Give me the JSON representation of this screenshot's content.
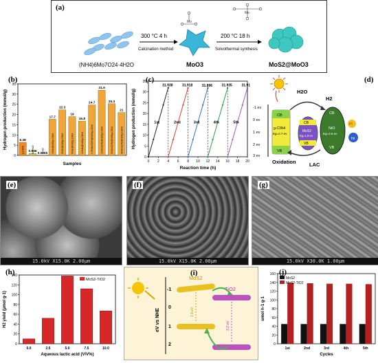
{
  "panel_a": {
    "label": "(a)",
    "precursor": "(NH4)6Mo7O24·4H2O",
    "step1_top": "300 °C  4 h",
    "step1_bottom": "Calcination method",
    "intermediate": "MoO3",
    "step2_top": "200 °C  18 h",
    "step2_bottom": "Solvothermal synthesis",
    "product": "MoS2@MoO3"
  },
  "panel_b": {
    "label": "(b)",
    "chart_data": {
      "type": "bar",
      "ylabel": "Hydrogen production (mmol/g)",
      "xlabel": "Samples",
      "categories": [
        "g-C3N4",
        "Ni@NiO",
        "MoS2",
        "1%Ni@NiO/g-C3N4",
        "3%Ni@NiO/g-C3N4",
        "5%Ni@NiO/g-C3N4",
        "10%Ni@NiO/g-C3N4",
        "0.5%MoS2/Ni@NiO/g-C3N4",
        "1%MoS2/Ni@NiO/g-C3N4",
        "2%MoS2/Ni@NiO/g-C3N4",
        "4%MoS2/Ni@NiO/g-C3N4"
      ],
      "values": [
        6.38,
        0.946,
        0.0065,
        17.7,
        22.3,
        19,
        16.8,
        24.7,
        31.9,
        25.3,
        21
      ],
      "value_labels": [
        "6.38",
        "0.946",
        "0.0065",
        "17.7",
        "22.3",
        "19",
        "16.8",
        "24.7",
        "31.9",
        "25.3",
        "21"
      ],
      "ylim": [
        0,
        35
      ],
      "yticks": [
        "0",
        "5",
        "10",
        "15",
        "20",
        "25",
        "30",
        "35"
      ]
    }
  },
  "panel_c": {
    "label": "(c)",
    "chart_data": {
      "type": "line",
      "ylabel": "Hydrogen production (mmol/g)",
      "xlabel": "Reaction time (h)",
      "xlim": [
        0,
        20
      ],
      "ylim": [
        0,
        35
      ],
      "xticks": [
        "0",
        "2",
        "4",
        "6",
        "8",
        "10",
        "12",
        "14",
        "16",
        "18",
        "20"
      ],
      "yticks": [
        "0",
        "5",
        "10",
        "15",
        "20",
        "25",
        "30",
        "35"
      ],
      "series": [
        {
          "name": "1st",
          "x": [
            0,
            1,
            2,
            3,
            4
          ],
          "y": [
            0,
            8,
            16,
            24,
            31.938
          ],
          "peak_label": "31.938",
          "color": "#222222"
        },
        {
          "name": "2nd",
          "x": [
            4,
            5,
            6,
            7,
            8
          ],
          "y": [
            0,
            8,
            16,
            24,
            31.918
          ],
          "peak_label": "31.918",
          "color": "#d9472b"
        },
        {
          "name": "3rd",
          "x": [
            8,
            9,
            10,
            11,
            12
          ],
          "y": [
            0,
            8,
            16,
            24,
            31.896
          ],
          "peak_label": "31.896",
          "color": "#2f6fd6"
        },
        {
          "name": "4th",
          "x": [
            12,
            13,
            14,
            15,
            16
          ],
          "y": [
            0,
            8,
            16,
            24,
            31.935
          ],
          "peak_label": "31.935",
          "color": "#2a9d4a"
        },
        {
          "name": "5th",
          "x": [
            16,
            17,
            18,
            19,
            20
          ],
          "y": [
            0,
            8,
            16,
            24,
            31.911
          ],
          "peak_label": "31.911",
          "color": "#9b59d0"
        }
      ]
    }
  },
  "panel_d": {
    "label": "(d)",
    "h2o": "H2O",
    "h2": "H2",
    "axis": [
      "-1 ev",
      "0 ev",
      "1 ev",
      "2 ev",
      "3 ev"
    ],
    "gcn": {
      "cb": "CB",
      "name": "g-C3N4",
      "eg": "Eg=2.7 ev",
      "vb": "VB"
    },
    "mos2": {
      "cb": "CB",
      "name": "MoS2",
      "eg": "Eg=1.9 ev",
      "vb": "VB"
    },
    "nio": {
      "cb": "CB",
      "name": "NiO",
      "eg": "Eg=3.5 ev",
      "vb": "VB"
    },
    "pt": "Pt",
    "ni": "Ni",
    "oxidation": "Oxidation",
    "lac": "LAC"
  },
  "panel_e": {
    "label": "(e)",
    "scale": "15.0kV X15.0K 2.00μm"
  },
  "panel_f": {
    "label": "(f)",
    "scale": "15.0kV X15.0K 2.00μm"
  },
  "panel_g": {
    "label": "(g)",
    "scale": "15.0kV X30.0K 1.00μm"
  },
  "panel_h": {
    "label": "(h)",
    "chart_data": {
      "type": "bar",
      "legend": "MoS2-TiO2",
      "ylabel": "H2 yield (μmol g-1)",
      "xlabel": "Aqueous lactic acid (V/V%)",
      "categories": [
        "0.0",
        "2.5",
        "5.0",
        "7.5",
        "10.0"
      ],
      "values": [
        10,
        52,
        138,
        112,
        67
      ],
      "ylim": [
        0,
        140
      ],
      "yticks": [
        "0",
        "20",
        "40",
        "60",
        "80",
        "100",
        "120",
        "140"
      ],
      "color": "#d62828"
    }
  },
  "panel_i": {
    "label": "(i)",
    "axis_label": "eV vs NHE",
    "ticks": [
      "-1",
      "0",
      "1",
      "2"
    ],
    "mos2": "MoS2",
    "tio2": "TiO2",
    "mos2_gap": "1.9 eV",
    "tio2_gap": "3.2 eV"
  },
  "panel_j": {
    "label": "(j)",
    "chart_data": {
      "type": "bar",
      "ylabel": "umol h-1 g-1",
      "xlabel": "Cycles",
      "categories": [
        "1st",
        "2nd",
        "3rd",
        "4th",
        "5th"
      ],
      "ylim": [
        0,
        160
      ],
      "yticks": [
        "0",
        "20",
        "40",
        "60",
        "80",
        "100",
        "120",
        "140",
        "160"
      ],
      "series": [
        {
          "name": "MoS2",
          "values": [
            45,
            45,
            45,
            45,
            45
          ],
          "color": "#111111"
        },
        {
          "name": "MoS2-TiO2",
          "values": [
            139,
            138,
            137,
            137,
            136
          ],
          "color": "#b22020"
        }
      ]
    }
  }
}
